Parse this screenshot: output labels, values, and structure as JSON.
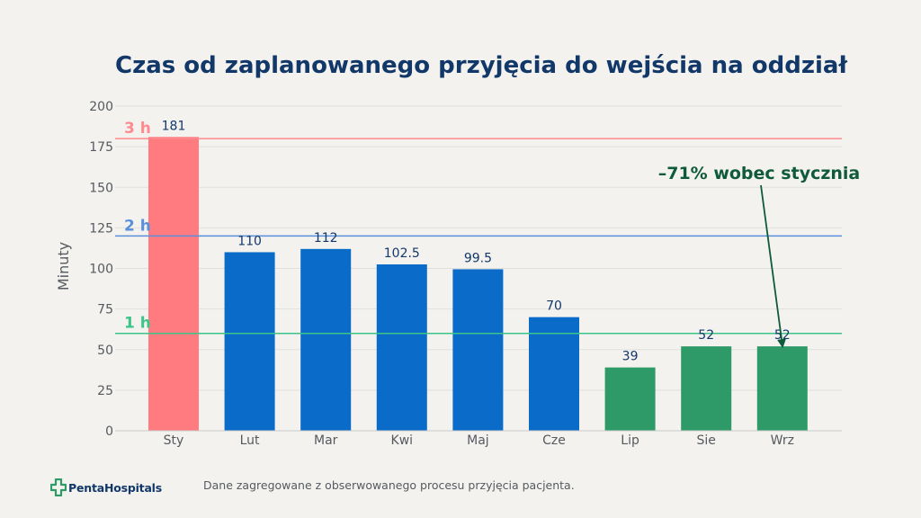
{
  "title": "Czas od zaplanowanego przyjęcia do wejścia na oddział",
  "footer": {
    "logo_text": "PentaHospitals",
    "note": "Dane zagregowane z obserwowanego procesu przyjęcia pacjenta."
  },
  "colors": {
    "background": "#f3f2ee",
    "bar_red": "#ff7b7f",
    "bar_blue": "#0b6bc9",
    "bar_green": "#2e9a67",
    "line_3h": "#ff8a8f",
    "line_2h": "#5a8fdc",
    "line_1h": "#3cc489",
    "title": "#12386a",
    "annotation": "#0f5a3a"
  },
  "chart_data": {
    "type": "bar",
    "categories": [
      "Sty",
      "Lut",
      "Mar",
      "Kwi",
      "Maj",
      "Cze",
      "Lip",
      "Sie",
      "Wrz"
    ],
    "values": [
      181,
      110,
      112,
      102.5,
      99.5,
      70,
      39,
      52,
      52
    ],
    "value_labels": [
      "181",
      "110",
      "112",
      "102.5",
      "99.5",
      "70",
      "39",
      "52",
      "52"
    ],
    "bar_colors": [
      "red",
      "blue",
      "blue",
      "blue",
      "blue",
      "blue",
      "green",
      "green",
      "green"
    ],
    "ylabel": "Minuty",
    "xlabel": "",
    "ylim": [
      0,
      200
    ],
    "yticks": [
      0,
      25,
      50,
      75,
      100,
      125,
      150,
      175,
      200
    ],
    "grid": "horizontal",
    "reference_lines": [
      {
        "value": 180,
        "label": "3 h",
        "color": "line_3h"
      },
      {
        "value": 120,
        "label": "2 h",
        "color": "line_2h"
      },
      {
        "value": 60,
        "label": "1 h",
        "color": "line_1h"
      }
    ],
    "annotation": {
      "text": "–71% wobec stycznia",
      "target_category": "Wrz",
      "target_value": 52
    }
  }
}
